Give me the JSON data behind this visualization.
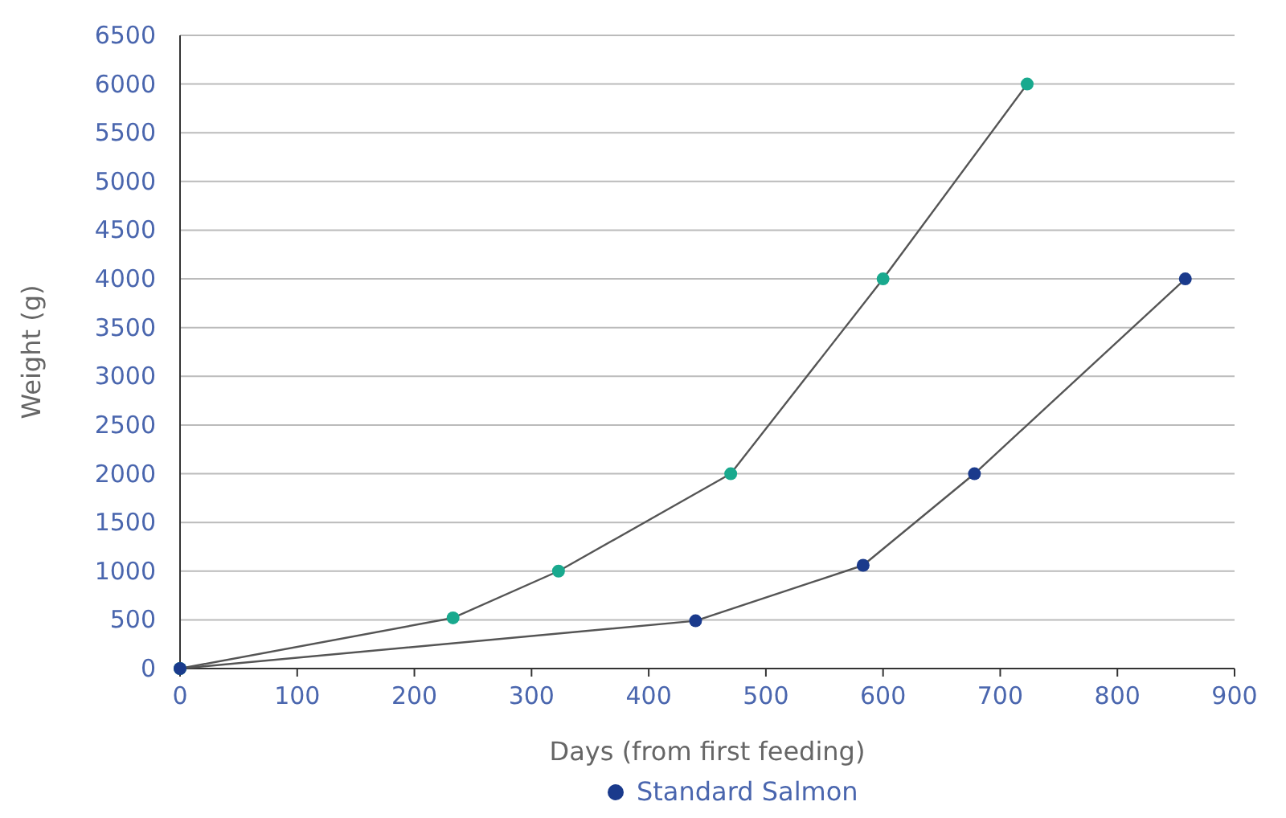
{
  "chart_data": {
    "type": "line",
    "xlabel": "Days (from first feeding)",
    "ylabel": "Weight (g)",
    "xlim": [
      0,
      900
    ],
    "xticks": [
      0,
      100,
      200,
      300,
      400,
      500,
      600,
      700,
      800,
      900
    ],
    "ylim": [
      0,
      6500
    ],
    "yticks": [
      0,
      500,
      1000,
      1500,
      2000,
      2500,
      3000,
      3500,
      4000,
      4500,
      5000,
      5500,
      6000,
      6500
    ],
    "grid": "y",
    "legend": "bottom",
    "marker": "circle",
    "line_style": "solid",
    "series": [
      {
        "color": "#19a98e",
        "x": [
          0,
          233,
          323,
          470,
          600,
          723
        ],
        "values": [
          0,
          520,
          1000,
          2000,
          4000,
          6000
        ]
      },
      {
        "name": "Standard Salmon",
        "color": "#1a3a8c",
        "x": [
          0,
          440,
          583,
          678,
          858
        ],
        "values": [
          0,
          490,
          1060,
          2000,
          4000
        ]
      }
    ]
  }
}
